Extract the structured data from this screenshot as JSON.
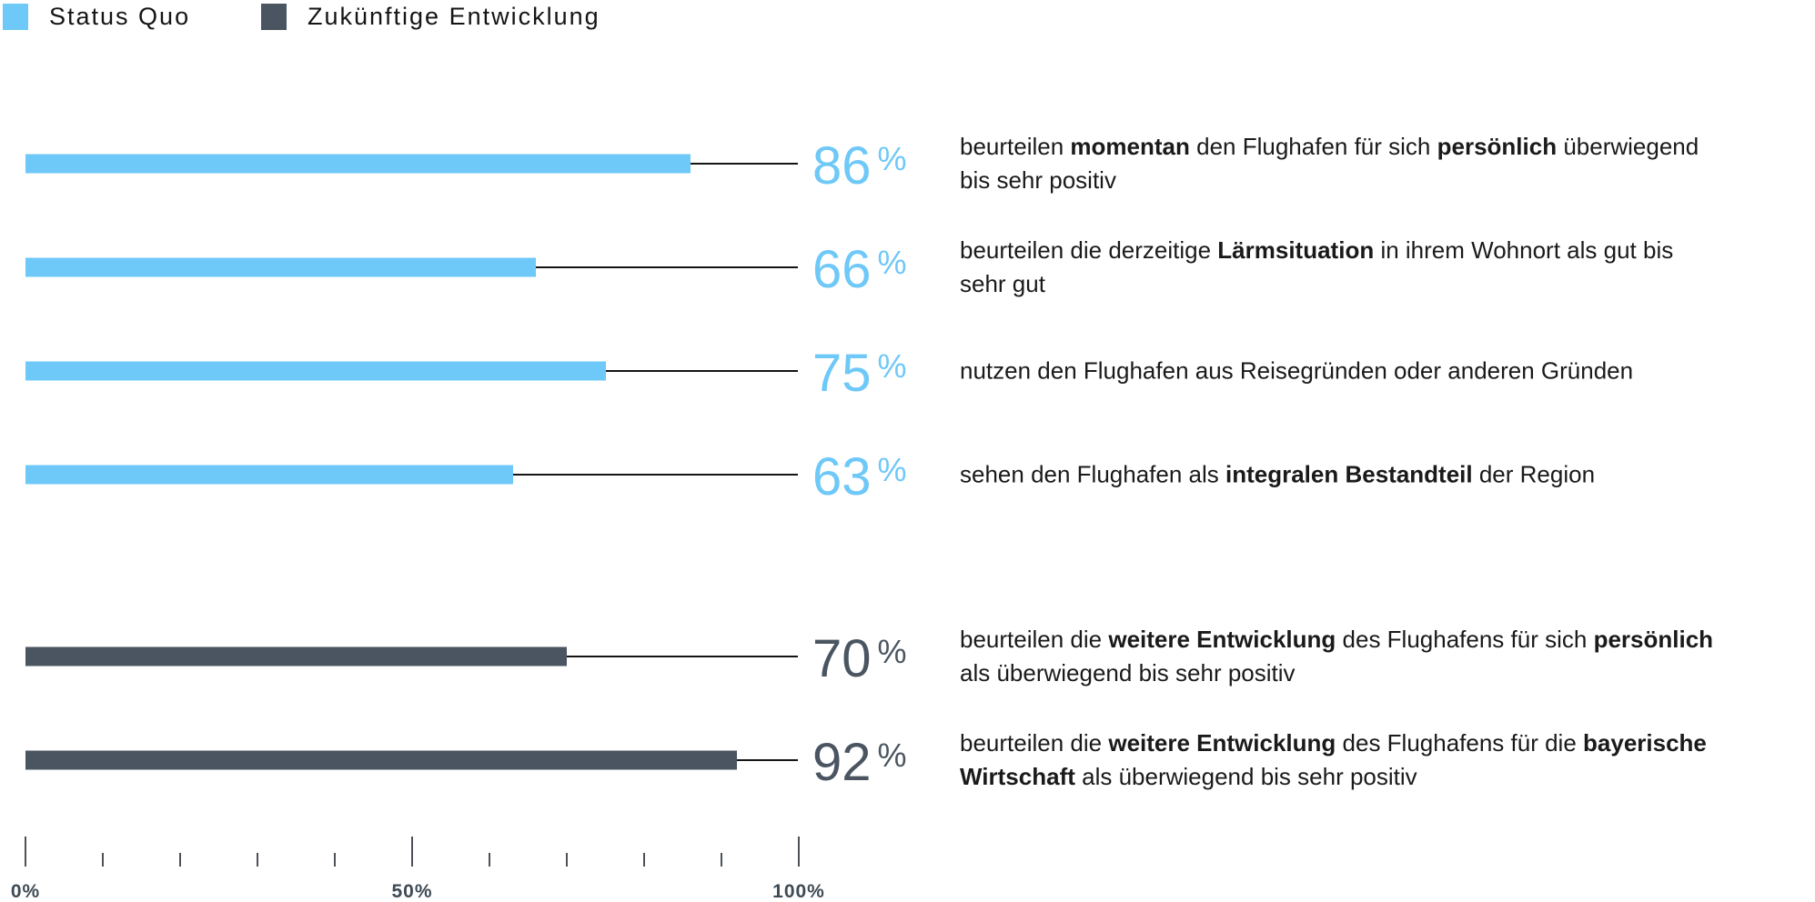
{
  "legend": {
    "items": [
      {
        "label": "Status Quo",
        "color": "#6ec8f8"
      },
      {
        "label": "Zukünftige Entwicklung",
        "color": "#4a5561"
      }
    ]
  },
  "chart_data": {
    "type": "bar",
    "orientation": "horizontal",
    "unit": "%",
    "xlim": [
      0,
      100
    ],
    "grid": false,
    "legend_position": "top-left",
    "axis": {
      "minor_step": 10,
      "major_ticks": [
        0,
        50,
        100
      ],
      "tick_labels": [
        {
          "pos": 0,
          "label": "0%"
        },
        {
          "pos": 50,
          "label": "50%"
        },
        {
          "pos": 100,
          "label": "100%"
        }
      ]
    },
    "groups": [
      {
        "series": "Status Quo",
        "color": "#6ec8f8",
        "bars": [
          {
            "value": 86,
            "unit": "%",
            "lines": [
              [
                {
                  "text": "beurteilen "
                },
                {
                  "text": "momentan",
                  "bold": true
                },
                {
                  "text": " den Flughafen für sich "
                },
                {
                  "text": "persönlich",
                  "bold": true
                },
                {
                  "text": " überwiegend"
                }
              ],
              [
                {
                  "text": "bis sehr positiv"
                }
              ]
            ]
          },
          {
            "value": 66,
            "unit": "%",
            "lines": [
              [
                {
                  "text": "beurteilen die derzeitige "
                },
                {
                  "text": "Lärmsituation",
                  "bold": true
                },
                {
                  "text": " in ihrem Wohnort als gut bis"
                }
              ],
              [
                {
                  "text": "sehr gut"
                }
              ]
            ]
          },
          {
            "value": 75,
            "unit": "%",
            "lines": [
              [
                {
                  "text": "nutzen den Flughafen aus Reisegründen oder anderen Gründen"
                }
              ]
            ]
          },
          {
            "value": 63,
            "unit": "%",
            "lines": [
              [
                {
                  "text": "sehen den Flughafen als "
                },
                {
                  "text": "integralen Bestandteil",
                  "bold": true
                },
                {
                  "text": " der Region"
                }
              ]
            ]
          }
        ]
      },
      {
        "series": "Zukünftige Entwicklung",
        "color": "#4a5561",
        "bars": [
          {
            "value": 70,
            "unit": "%",
            "lines": [
              [
                {
                  "text": "beurteilen die "
                },
                {
                  "text": "weitere Entwicklung",
                  "bold": true
                },
                {
                  "text": " des Flughafens für sich "
                },
                {
                  "text": "persönlich",
                  "bold": true
                }
              ],
              [
                {
                  "text": "als überwiegend bis sehr positiv"
                }
              ]
            ]
          },
          {
            "value": 92,
            "unit": "%",
            "lines": [
              [
                {
                  "text": "beurteilen die "
                },
                {
                  "text": "weitere Entwicklung",
                  "bold": true
                },
                {
                  "text": " des Flughafens für die "
                },
                {
                  "text": "bayerische",
                  "bold": true
                }
              ],
              [
                {
                  "text": "Wirtschaft",
                  "bold": true
                },
                {
                  "text": " als überwiegend bis sehr positiv"
                }
              ]
            ]
          }
        ]
      }
    ]
  }
}
